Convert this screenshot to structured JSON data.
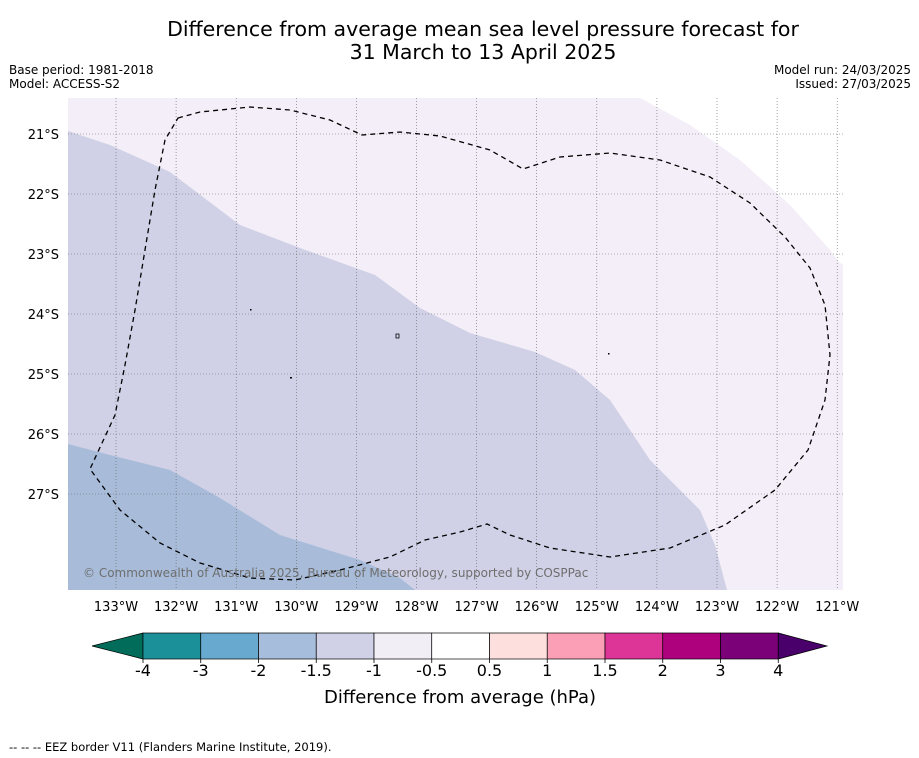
{
  "title": {
    "line1": "Difference from average mean sea level pressure forecast for",
    "line2": "31 March to 13 April 2025"
  },
  "meta_left": {
    "base_period": "Base period: 1981-2018",
    "model": "Model: ACCESS-S2"
  },
  "meta_right": {
    "model_run": "Model run: 24/03/2025",
    "issued": "Issued: 27/03/2025"
  },
  "map": {
    "lat_labels": [
      "21°S",
      "22°S",
      "23°S",
      "24°S",
      "25°S",
      "26°S",
      "27°S"
    ],
    "lon_labels": [
      "133°W",
      "132°W",
      "131°W",
      "130°W",
      "129°W",
      "128°W",
      "127°W",
      "126°W",
      "125°W",
      "124°W",
      "123°W",
      "122°W",
      "121°W"
    ],
    "copyright": "© Commonwealth of Australia 2025, Bureau of Meteorology, supported by COSPPac",
    "colors": {
      "neg_1_5_to_neg_1": "#d0d1e6",
      "neg_2_to_neg_1_5": "#a6bddb",
      "neg_1_to_neg_0_5": "#f2eef6"
    }
  },
  "colorbar": {
    "ticks": [
      "-4",
      "-3",
      "-2",
      "-1.5",
      "-1",
      "-0.5",
      "0.5",
      "1",
      "1.5",
      "2",
      "3",
      "4"
    ],
    "colors": [
      "#016c59",
      "#1c9099",
      "#67a9cf",
      "#a6bddb",
      "#d0d1e6",
      "#f1eef6",
      "#ffffff",
      "#fde0dd",
      "#fa9fb5",
      "#dd3497",
      "#ae017e",
      "#7a0177",
      "#49006a"
    ],
    "label": "Difference from average (hPa)"
  },
  "footer": "-- -- -- EEZ border V11 (Flanders Marine Institute, 2019)."
}
